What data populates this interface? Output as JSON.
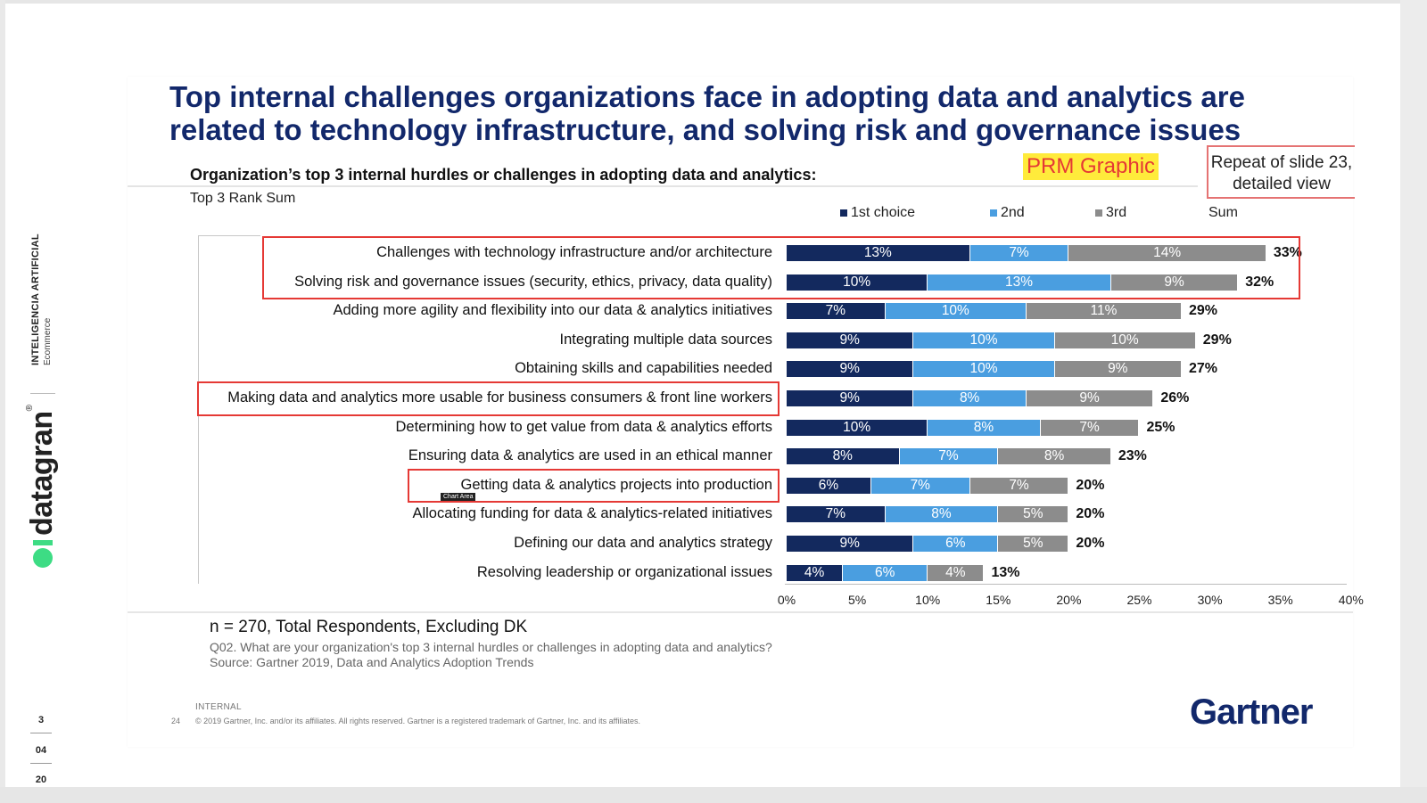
{
  "sidebar": {
    "line1": "INTELIGENCIA ARTIFICIAL",
    "line2": "Ecommerce",
    "brand": "datagran",
    "brand_mark": "®",
    "page_numbers": [
      "3",
      "04",
      "20"
    ]
  },
  "slide": {
    "title": "Top internal challenges organizations face in adopting data and analytics are related to technology infrastructure, and solving risk and governance issues",
    "subtitle": "Organization’s top 3 internal hurdles or challenges in adopting data and analytics:",
    "rank_label": "Top 3 Rank Sum",
    "prm_label": "PRM Graphic",
    "repeat_note": "Repeat of slide 23, detailed view",
    "tooltip": "Chart Area",
    "footer": {
      "n": "n = 270, Total Respondents, Excluding DK",
      "question": "Q02. What are your organization's top 3 internal hurdles or challenges in adopting data and analytics?",
      "source": "Source: Gartner 2019, Data and Analytics Adoption Trends",
      "internal": "INTERNAL",
      "slide_number": "24",
      "copyright": "© 2019 Gartner, Inc. and/or its affiliates. All rights reserved. Gartner is a registered trademark of Gartner, Inc. and its affiliates.",
      "logo": "Gartner"
    }
  },
  "colors": {
    "first": "#13295e",
    "second": "#4a9ee0",
    "third": "#8c8c8c",
    "title": "#12286b",
    "highlight": "#e53935"
  },
  "chart_data": {
    "type": "bar",
    "orientation": "horizontal",
    "stacked": true,
    "categories": [
      "Challenges with technology infrastructure and/or architecture",
      "Solving risk and governance issues (security, ethics, privacy, data quality)",
      "Adding more agility and flexibility into our data & analytics initiatives",
      "Integrating multiple data sources",
      "Obtaining skills and capabilities needed",
      "Making data and analytics more usable for business consumers & front line workers",
      "Determining how to get value from data & analytics efforts",
      "Ensuring data & analytics are used in an ethical manner",
      "Getting data & analytics projects into production",
      "Allocating funding for data & analytics-related initiatives",
      "Defining our data and analytics strategy",
      "Resolving leadership or organizational issues"
    ],
    "series": [
      {
        "name": "1st choice",
        "values": [
          13,
          10,
          7,
          9,
          9,
          9,
          10,
          8,
          6,
          7,
          9,
          4
        ]
      },
      {
        "name": "2nd",
        "values": [
          7,
          13,
          10,
          10,
          10,
          8,
          8,
          7,
          7,
          8,
          6,
          6
        ]
      },
      {
        "name": "3rd",
        "values": [
          14,
          9,
          11,
          10,
          9,
          9,
          7,
          8,
          7,
          5,
          5,
          4
        ]
      }
    ],
    "segment_labels": [
      [
        "13%",
        "7%",
        "14%"
      ],
      [
        "10%",
        "13%",
        "9%"
      ],
      [
        "7%",
        "10%",
        "11%"
      ],
      [
        "9%",
        "10%",
        "10%"
      ],
      [
        "9%",
        "10%",
        "9%"
      ],
      [
        "9%",
        "8%",
        "9%"
      ],
      [
        "10%",
        "8%",
        "7%"
      ],
      [
        "8%",
        "7%",
        "8%"
      ],
      [
        "6%",
        "7%",
        "7%"
      ],
      [
        "7%",
        "8%",
        "5%"
      ],
      [
        "9%",
        "6%",
        "5%"
      ],
      [
        "4%",
        "6%",
        "4%"
      ]
    ],
    "sum_label": "Sum",
    "sums": [
      "33%",
      "32%",
      "29%",
      "29%",
      "27%",
      "26%",
      "25%",
      "23%",
      "20%",
      "20%",
      "20%",
      "13%"
    ],
    "sum_values": [
      33,
      32,
      29,
      29,
      27,
      26,
      25,
      23,
      20,
      20,
      20,
      13
    ],
    "x_ticks": [
      "0%",
      "5%",
      "10%",
      "15%",
      "20%",
      "25%",
      "30%",
      "35%",
      "40%"
    ],
    "xlim": [
      0,
      40
    ],
    "highlighted_categories": [
      0,
      1,
      5,
      8
    ],
    "legend_placement": "top",
    "grid": false
  }
}
